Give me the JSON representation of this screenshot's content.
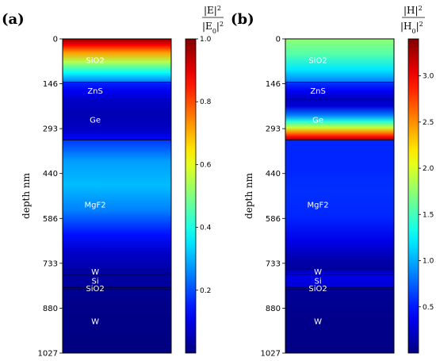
{
  "chart_data": [
    {
      "type": "heatmap",
      "panel": "(a)",
      "ylabel": "depth nm",
      "ylim": [
        0,
        1027
      ],
      "yticks": [
        "0",
        "146",
        "293",
        "440",
        "586",
        "733",
        "880",
        "1027"
      ],
      "colorbar": {
        "label_num": "|E|",
        "label_den": "|E",
        "label_sub": "0",
        "label_exp": "2",
        "range": [
          0,
          1.0
        ],
        "ticks": [
          "0.2",
          "0.4",
          "0.6",
          "0.8",
          "1.0"
        ]
      },
      "layers": [
        {
          "name": "SiO2",
          "top": 0,
          "bottom": 141
        },
        {
          "name": "ZnS",
          "top": 141,
          "bottom": 198
        },
        {
          "name": "Ge",
          "top": 198,
          "bottom": 330
        },
        {
          "name": "MgF2",
          "top": 330,
          "bottom": 753
        },
        {
          "name": "W",
          "top": 753,
          "bottom": 770
        },
        {
          "name": "Si",
          "top": 770,
          "bottom": 812
        },
        {
          "name": "SiO2",
          "top": 812,
          "bottom": 820
        },
        {
          "name": "W",
          "top": 820,
          "bottom": 1027
        }
      ],
      "profile": [
        {
          "depth": 0,
          "value": 0.98
        },
        {
          "depth": 20,
          "value": 0.88
        },
        {
          "depth": 45,
          "value": 0.72
        },
        {
          "depth": 75,
          "value": 0.55
        },
        {
          "depth": 110,
          "value": 0.38
        },
        {
          "depth": 140,
          "value": 0.25
        },
        {
          "depth": 142,
          "value": 0.16
        },
        {
          "depth": 170,
          "value": 0.11
        },
        {
          "depth": 198,
          "value": 0.08
        },
        {
          "depth": 200,
          "value": 0.07
        },
        {
          "depth": 250,
          "value": 0.05
        },
        {
          "depth": 300,
          "value": 0.07
        },
        {
          "depth": 330,
          "value": 0.13
        },
        {
          "depth": 332,
          "value": 0.18
        },
        {
          "depth": 400,
          "value": 0.28
        },
        {
          "depth": 480,
          "value": 0.31
        },
        {
          "depth": 560,
          "value": 0.25
        },
        {
          "depth": 640,
          "value": 0.14
        },
        {
          "depth": 700,
          "value": 0.07
        },
        {
          "depth": 753,
          "value": 0.04
        },
        {
          "depth": 770,
          "value": 0.03
        },
        {
          "depth": 812,
          "value": 0.03
        },
        {
          "depth": 820,
          "value": 0.02
        },
        {
          "depth": 860,
          "value": 0.01
        },
        {
          "depth": 1027,
          "value": 0.0
        }
      ]
    },
    {
      "type": "heatmap",
      "panel": "(b)",
      "ylabel": "depth nm",
      "ylim": [
        0,
        1027
      ],
      "yticks": [
        "0",
        "146",
        "293",
        "440",
        "586",
        "733",
        "880",
        "1027"
      ],
      "colorbar": {
        "label_num": "|H|",
        "label_den": "|H",
        "label_sub": "0",
        "label_exp": "2",
        "range": [
          0,
          3.4
        ],
        "ticks": [
          "0.5",
          "1.0",
          "1.5",
          "2.0",
          "2.5",
          "3.0"
        ]
      },
      "layers": [
        {
          "name": "SiO2",
          "top": 0,
          "bottom": 141
        },
        {
          "name": "ZnS",
          "top": 141,
          "bottom": 198
        },
        {
          "name": "Ge",
          "top": 198,
          "bottom": 330
        },
        {
          "name": "MgF2",
          "top": 330,
          "bottom": 753
        },
        {
          "name": "W",
          "top": 753,
          "bottom": 770
        },
        {
          "name": "Si",
          "top": 770,
          "bottom": 812
        },
        {
          "name": "SiO2",
          "top": 812,
          "bottom": 820
        },
        {
          "name": "W",
          "top": 820,
          "bottom": 1027
        }
      ],
      "profile": [
        {
          "depth": 0,
          "value": 1.75
        },
        {
          "depth": 50,
          "value": 1.55
        },
        {
          "depth": 100,
          "value": 1.2
        },
        {
          "depth": 140,
          "value": 0.85
        },
        {
          "depth": 142,
          "value": 0.6
        },
        {
          "depth": 170,
          "value": 0.4
        },
        {
          "depth": 198,
          "value": 0.2
        },
        {
          "depth": 220,
          "value": 0.3
        },
        {
          "depth": 250,
          "value": 0.85
        },
        {
          "depth": 270,
          "value": 1.4
        },
        {
          "depth": 290,
          "value": 1.95
        },
        {
          "depth": 305,
          "value": 2.5
        },
        {
          "depth": 320,
          "value": 2.95
        },
        {
          "depth": 330,
          "value": 3.25
        },
        {
          "depth": 332,
          "value": 0.55
        },
        {
          "depth": 420,
          "value": 0.55
        },
        {
          "depth": 500,
          "value": 0.58
        },
        {
          "depth": 580,
          "value": 0.55
        },
        {
          "depth": 660,
          "value": 0.35
        },
        {
          "depth": 720,
          "value": 0.15
        },
        {
          "depth": 753,
          "value": 0.1
        },
        {
          "depth": 770,
          "value": 0.35
        },
        {
          "depth": 812,
          "value": 0.3
        },
        {
          "depth": 820,
          "value": 0.08
        },
        {
          "depth": 900,
          "value": 0.04
        },
        {
          "depth": 1027,
          "value": 0.02
        }
      ]
    }
  ]
}
